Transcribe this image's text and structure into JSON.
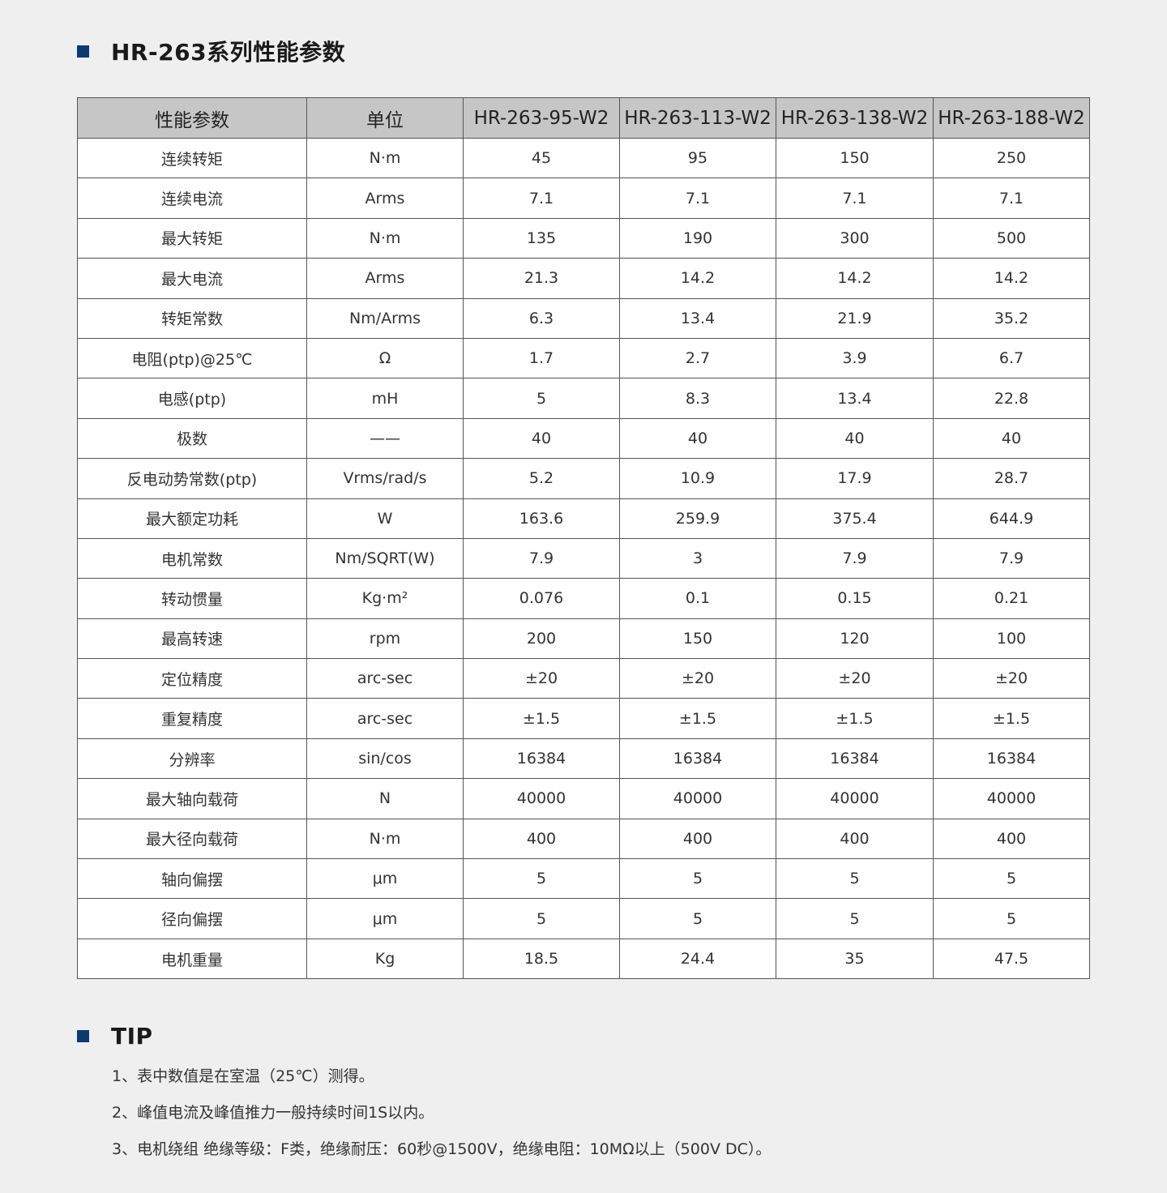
{
  "title": "HR-263系列性能参数",
  "accent_color": "#0d3a6e",
  "table": {
    "headers": [
      "性能参数",
      "单位",
      "HR-263-95-W2",
      "HR-263-113-W2",
      "HR-263-138-W2",
      "HR-263-188-W2"
    ],
    "rows": [
      [
        "连续转矩",
        "N·m",
        "45",
        "95",
        "150",
        "250"
      ],
      [
        "连续电流",
        "Arms",
        "7.1",
        "7.1",
        "7.1",
        "7.1"
      ],
      [
        "最大转矩",
        "N·m",
        "135",
        "190",
        "300",
        "500"
      ],
      [
        "最大电流",
        "Arms",
        "21.3",
        "14.2",
        "14.2",
        "14.2"
      ],
      [
        "转矩常数",
        "Nm/Arms",
        "6.3",
        "13.4",
        "21.9",
        "35.2"
      ],
      [
        "电阻(ptp)@25℃",
        "Ω",
        "1.7",
        "2.7",
        "3.9",
        "6.7"
      ],
      [
        "电感(ptp)",
        "mH",
        "5",
        "8.3",
        "13.4",
        "22.8"
      ],
      [
        "极数",
        "——",
        "40",
        "40",
        "40",
        "40"
      ],
      [
        "反电动势常数(ptp)",
        "Vrms/rad/s",
        "5.2",
        "10.9",
        "17.9",
        "28.7"
      ],
      [
        "最大额定功耗",
        "W",
        "163.6",
        "259.9",
        "375.4",
        "644.9"
      ],
      [
        "电机常数",
        "Nm/SQRT(W)",
        "7.9",
        "3",
        "7.9",
        "7.9"
      ],
      [
        "转动惯量",
        "Kg·m²",
        "0.076",
        "0.1",
        "0.15",
        "0.21"
      ],
      [
        "最高转速",
        "rpm",
        "200",
        "150",
        "120",
        "100"
      ],
      [
        "定位精度",
        "arc-sec",
        "±20",
        "±20",
        "±20",
        "±20"
      ],
      [
        "重复精度",
        "arc-sec",
        "±1.5",
        "±1.5",
        "±1.5",
        "±1.5"
      ],
      [
        "分辨率",
        "sin/cos",
        "16384",
        "16384",
        "16384",
        "16384"
      ],
      [
        "最大轴向载荷",
        "N",
        "40000",
        "40000",
        "40000",
        "40000"
      ],
      [
        "最大径向载荷",
        "N·m",
        "400",
        "400",
        "400",
        "400"
      ],
      [
        "轴向偏摆",
        "μm",
        "5",
        "5",
        "5",
        "5"
      ],
      [
        "径向偏摆",
        "μm",
        "5",
        "5",
        "5",
        "5"
      ],
      [
        "电机重量",
        "Kg",
        "18.5",
        "24.4",
        "35",
        "47.5"
      ]
    ]
  },
  "tip": {
    "title": "TIP",
    "items": [
      "1、表中数值是在室温（25℃）测得。",
      "2、峰值电流及峰值推力一般持续时间1S以内。",
      "3、电机绕组 绝缘等级：F类，绝缘耐压：60秒@1500V，绝缘电阻：10MΩ以上（500V DC）。"
    ]
  }
}
